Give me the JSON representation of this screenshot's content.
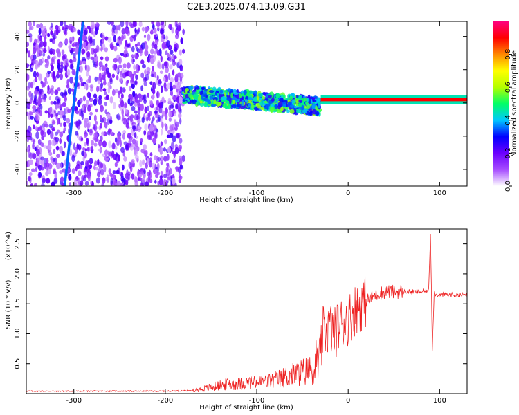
{
  "chart_data": [
    {
      "type": "heatmap",
      "title": "C2E3.2025.074.13.09.G31",
      "xlabel": "Height of straight line (km)",
      "ylabel": "Frequency (Hz)",
      "xlim": [
        -352,
        130
      ],
      "ylim": [
        -50,
        49
      ],
      "xticks": [
        -300,
        -200,
        -100,
        0,
        100
      ],
      "yticks": [
        -40,
        -20,
        0,
        20,
        40
      ],
      "colorbar": {
        "label": "Normalized spectral amplitude",
        "range": [
          0,
          1
        ],
        "ticks": [
          "0.0",
          "0.2",
          "0.4",
          "0.6",
          "0.8"
        ],
        "colormap": [
          "#ffffff",
          "#a64dff",
          "#6b00ff",
          "#0000ff",
          "#00c8ff",
          "#00ff66",
          "#b4ff00",
          "#ffff00",
          "#ff8800",
          "#ff0000",
          "#ff007f"
        ]
      },
      "regions": [
        {
          "x": [
            -352,
            -180
          ],
          "y": [
            -50,
            49
          ],
          "amplitude": 0.15,
          "note": "scattered noise"
        },
        {
          "x": [
            -180,
            -30
          ],
          "y": [
            -12,
            12
          ],
          "amplitude": 0.4
        },
        {
          "x": [
            -30,
            130
          ],
          "y": [
            1,
            3
          ],
          "amplitude": 0.9
        }
      ],
      "lines": [
        {
          "x": [
            -310,
            -300,
            -290
          ],
          "y": [
            -50,
            0,
            49
          ]
        }
      ]
    },
    {
      "type": "line",
      "title": "",
      "xlabel": "Height of straight line (km)",
      "ylabel": "SNR (10 * v/v)",
      "scale_label": "(x10^4)",
      "xlim": [
        -352,
        130
      ],
      "ylim": [
        0,
        2.75
      ],
      "xticks": [
        -300,
        -200,
        -100,
        0,
        100
      ],
      "yticks": [
        0.5,
        1.0,
        1.5,
        2.0,
        2.5
      ],
      "color": "#ee2222",
      "series": [
        {
          "x": [
            -352,
            -300,
            -250,
            -200,
            -170,
            -160,
            -150,
            -140,
            -130,
            -120,
            -110,
            -100,
            -90,
            -80,
            -70,
            -60,
            -50,
            -40,
            -35,
            -30,
            -28,
            -25,
            -20,
            -15,
            -10,
            -5,
            0,
            5,
            10,
            15,
            20,
            25,
            30,
            40,
            50,
            60,
            70,
            80,
            88,
            90,
            92,
            94,
            96,
            100,
            110,
            120,
            130
          ],
          "y": [
            0.04,
            0.04,
            0.04,
            0.04,
            0.05,
            0.08,
            0.12,
            0.15,
            0.18,
            0.18,
            0.2,
            0.2,
            0.22,
            0.25,
            0.3,
            0.35,
            0.4,
            0.45,
            0.5,
            0.6,
            1.0,
            1.05,
            1.1,
            1.0,
            1.15,
            1.2,
            1.25,
            1.35,
            1.45,
            1.5,
            1.55,
            1.6,
            1.65,
            1.7,
            1.7,
            1.7,
            1.7,
            1.7,
            1.72,
            2.7,
            0.75,
            1.7,
            1.65,
            1.65,
            1.65,
            1.65,
            1.65
          ]
        }
      ]
    }
  ]
}
